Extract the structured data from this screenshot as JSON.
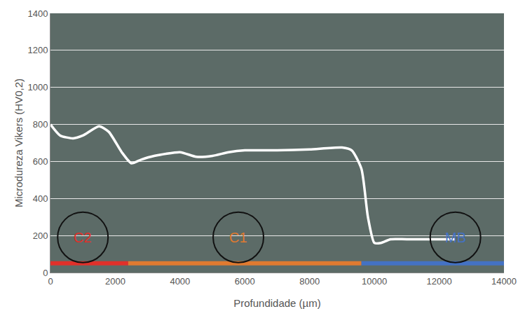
{
  "chart_data": {
    "type": "line",
    "x_label": "Profundidade (µm)",
    "y_label": "Microdureza Vikers (HV0,2)",
    "x": [
      0,
      300,
      700,
      1000,
      1500,
      1800,
      2200,
      2500,
      2800,
      3200,
      4000,
      4500,
      5000,
      5500,
      6000,
      7000,
      8000,
      9000,
      9300,
      9600,
      9800,
      10000,
      10200,
      10500,
      11000,
      12500
    ],
    "values": [
      800,
      740,
      725,
      740,
      790,
      760,
      650,
      590,
      610,
      630,
      650,
      625,
      630,
      650,
      660,
      660,
      665,
      675,
      660,
      560,
      300,
      160,
      160,
      180,
      180,
      180
    ],
    "color": "#ffffff",
    "xlim": [
      0,
      14000
    ],
    "xticks": [
      0,
      2000,
      4000,
      6000,
      8000,
      10000,
      12000,
      14000
    ],
    "ylim": [
      0,
      1400
    ],
    "yticks": [
      0,
      200,
      400,
      600,
      800,
      1000,
      1200,
      1400
    ],
    "grid": true,
    "regions": [
      {
        "name": "C2",
        "color": "#e0302a",
        "start": 0,
        "end": 2400,
        "y": 50,
        "label_x": 1000,
        "label_y": 190
      },
      {
        "name": "C1",
        "color": "#e07a30",
        "start": 2400,
        "end": 9600,
        "y": 50,
        "label_x": 5800,
        "label_y": 190
      },
      {
        "name": "MB",
        "color": "#4472c4",
        "start": 9600,
        "end": 14000,
        "y": 50,
        "label_x": 12500,
        "label_y": 190
      }
    ]
  }
}
